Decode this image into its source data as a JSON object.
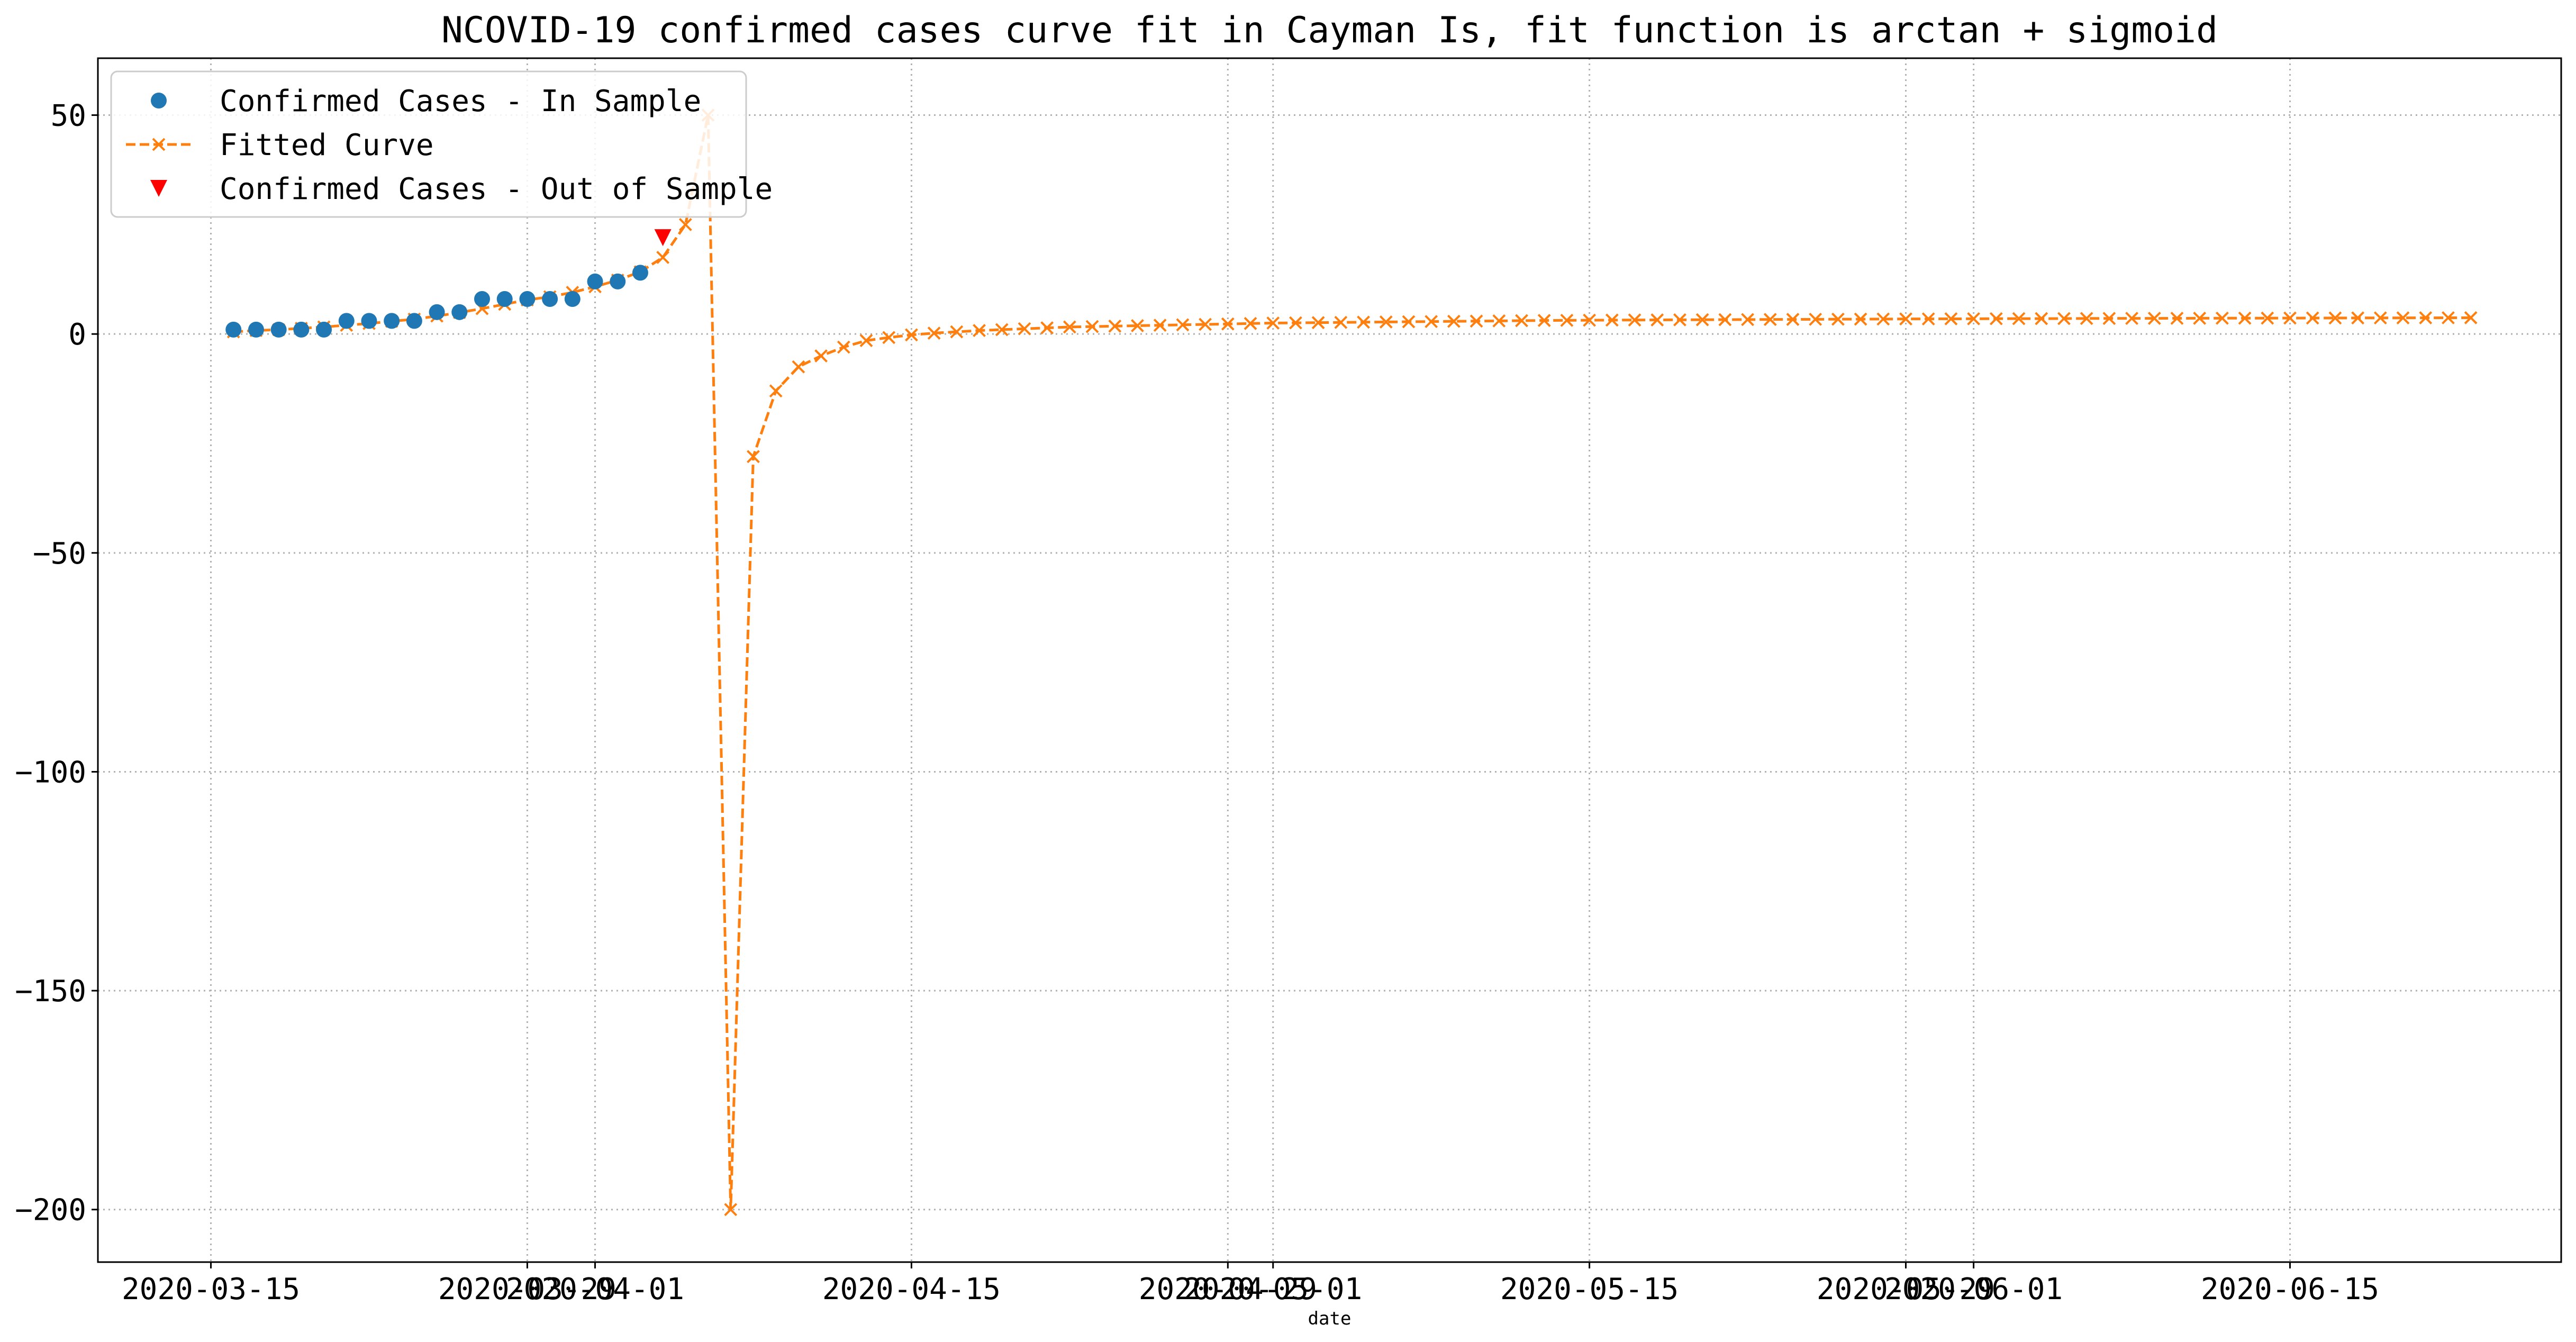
{
  "chart_data": {
    "type": "line",
    "title": "NCOVID-19 confirmed cases curve fit in Cayman Is, fit function is arctan + sigmoid",
    "xlabel": "date",
    "ylabel": "",
    "x_axis_type": "date",
    "xlim": [
      "2020-03-10",
      "2020-06-27"
    ],
    "ylim": [
      -212,
      63
    ],
    "y_ticks": [
      50,
      0,
      -50,
      -100,
      -150,
      -200
    ],
    "y_tick_labels": [
      "50",
      "0",
      "−50",
      "−100",
      "−150",
      "−200"
    ],
    "x_ticks": [
      "2020-03-15",
      "2020-03-29",
      "2020-04-01",
      "2020-04-15",
      "2020-04-29",
      "2020-05-01",
      "2020-05-15",
      "2020-05-29",
      "2020-06-01",
      "2020-06-15"
    ],
    "x_tick_labels": [
      "2020-03-15",
      "2020-03-29",
      "2020-04-01",
      "2020-04-15",
      "2020-04-29",
      "2020-05-01",
      "2020-05-15",
      "2020-05-29",
      "2020-06-01",
      "2020-06-15"
    ],
    "grid": true,
    "legend_position": "top-left",
    "in_sample": {
      "name": "Confirmed Cases - In Sample",
      "color": "#1f77b4",
      "marker": "circle",
      "x": [
        "2020-03-16",
        "2020-03-17",
        "2020-03-18",
        "2020-03-19",
        "2020-03-20",
        "2020-03-21",
        "2020-03-22",
        "2020-03-23",
        "2020-03-24",
        "2020-03-25",
        "2020-03-26",
        "2020-03-27",
        "2020-03-28",
        "2020-03-29",
        "2020-03-30",
        "2020-03-31",
        "2020-04-01",
        "2020-04-02",
        "2020-04-03"
      ],
      "y": [
        1,
        1,
        1,
        1,
        1,
        3,
        3,
        3,
        3,
        5,
        5,
        8,
        8,
        8,
        8,
        8,
        12,
        12,
        14
      ]
    },
    "out_sample": {
      "name": "Confirmed Cases - Out of Sample",
      "color": "#ff0000",
      "marker": "triangle-down",
      "x": [
        "2020-04-04"
      ],
      "y": [
        22
      ]
    },
    "fitted": {
      "name": "Fitted Curve",
      "color": "#ff7f0e",
      "marker": "x",
      "linestyle": "dashed",
      "start_date": "2020-03-16",
      "y": [
        0.5,
        0.8,
        1.0,
        1.3,
        1.6,
        2.0,
        2.4,
        2.9,
        3.4,
        4.1,
        4.9,
        5.8,
        6.8,
        7.8,
        8.5,
        9.5,
        10.8,
        12.3,
        14.2,
        17.5,
        25,
        50,
        -200,
        -28,
        -13,
        -7.5,
        -5,
        -3,
        -1.5,
        -0.8,
        -0.2,
        0.2,
        0.5,
        0.8,
        1.0,
        1.2,
        1.4,
        1.6,
        1.7,
        1.8,
        1.9,
        2.0,
        2.1,
        2.2,
        2.3,
        2.4,
        2.5,
        2.55,
        2.6,
        2.65,
        2.7,
        2.75,
        2.8,
        2.85,
        2.9,
        2.95,
        3.0,
        3.05,
        3.1,
        3.12,
        3.15,
        3.18,
        3.2,
        3.22,
        3.24,
        3.26,
        3.28,
        3.3,
        3.32,
        3.34,
        3.36,
        3.38,
        3.4,
        3.42,
        3.44,
        3.45,
        3.47,
        3.48,
        3.5,
        3.51,
        3.52,
        3.53,
        3.55,
        3.56,
        3.57,
        3.58,
        3.59,
        3.6,
        3.61,
        3.62,
        3.63,
        3.64,
        3.65,
        3.66,
        3.67,
        3.68,
        3.69,
        3.7,
        3.71,
        3.72
      ]
    }
  }
}
